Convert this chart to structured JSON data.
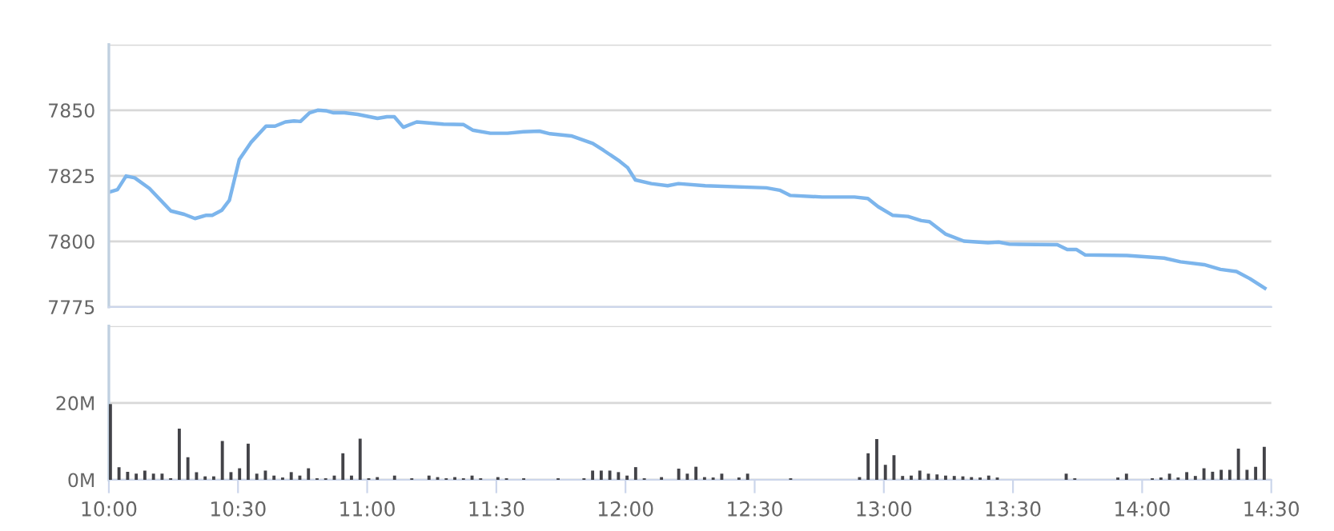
{
  "chart_data": [
    {
      "type": "line",
      "x": [
        10,
        10.0333,
        10.0667,
        10.1,
        10.1567,
        10.24,
        10.2917,
        10.3333,
        10.375,
        10.4,
        10.4367,
        10.4667,
        10.505,
        10.55,
        10.6083,
        10.6433,
        10.6833,
        10.7167,
        10.7417,
        10.7767,
        10.8083,
        10.84,
        10.87,
        10.9117,
        10.9633,
        11.04,
        11.0767,
        11.105,
        11.14,
        11.1917,
        11.295,
        11.3733,
        11.4083,
        11.4767,
        11.5433,
        11.605,
        11.6667,
        11.7083,
        11.79,
        11.8733,
        11.915,
        11.9767,
        12.0083,
        12.0383,
        12.1,
        12.1633,
        12.205,
        12.3083,
        12.545,
        12.5967,
        12.6383,
        12.7617,
        12.8867,
        12.9383,
        12.9783,
        13.035,
        13.0933,
        13.145,
        13.1767,
        13.2383,
        13.31,
        13.4033,
        13.445,
        13.4867,
        13.6717,
        13.71,
        13.745,
        13.78,
        13.9417,
        14.085,
        14.1483,
        14.24,
        14.3033,
        14.365,
        14.4167,
        14.475
      ],
      "series": [
        {
          "color": "#7cb5ec",
          "values": [
            7818.7,
            7819.7,
            7824.9,
            7824.2,
            7820.2,
            7811.6,
            7810.3,
            7808.7,
            7809.9,
            7809.9,
            7811.8,
            7815.7,
            7831.2,
            7837.7,
            7843.9,
            7843.9,
            7845.5,
            7845.9,
            7845.7,
            7849,
            7850,
            7849.8,
            7849,
            7849,
            7848.4,
            7846.9,
            7847.5,
            7847.5,
            7843.5,
            7845.5,
            7844.7,
            7844.5,
            7842.4,
            7841.2,
            7841.2,
            7841.8,
            7842,
            7841,
            7840.2,
            7837.3,
            7834.7,
            7830.6,
            7828.1,
            7823.4,
            7822,
            7821.2,
            7822,
            7821.2,
            7820.4,
            7819.5,
            7817.5,
            7816.9,
            7816.9,
            7816.3,
            7813.2,
            7809.9,
            7809.5,
            7807.9,
            7807.5,
            7802.8,
            7800.1,
            7799.5,
            7799.7,
            7798.9,
            7798.7,
            7796.9,
            7796.9,
            7794.8,
            7794.6,
            7793.6,
            7792.2,
            7791.1,
            7789.3,
            7788.5,
            7785.8,
            7782.1
          ]
        }
      ],
      "xlim": [
        10,
        14.5
      ],
      "ylim": [
        7775,
        7875
      ],
      "yticks": [
        7775,
        7800,
        7825,
        7850,
        {
          "value": 7875,
          "label": null
        }
      ],
      "grid": "y",
      "tick_labels": "y",
      "marker": "none",
      "line_style": "solid"
    },
    {
      "type": "bar",
      "x": [
        10,
        10.0333,
        10.0667,
        10.1,
        10.1333,
        10.1667,
        10.2,
        10.2333,
        10.2667,
        10.3,
        10.3333,
        10.3667,
        10.4,
        10.4333,
        10.4667,
        10.5,
        10.5333,
        10.5667,
        10.6,
        10.6333,
        10.6667,
        10.7,
        10.7333,
        10.7667,
        10.8,
        10.8333,
        10.8667,
        10.9,
        10.9333,
        10.9667,
        11,
        11.0333,
        11.1,
        11.1667,
        11.2333,
        11.2667,
        11.3,
        11.3333,
        11.3667,
        11.4,
        11.4333,
        11.5,
        11.5333,
        11.6,
        11.7333,
        11.8333,
        11.8667,
        11.9,
        11.9333,
        11.9667,
        12,
        12.0333,
        12.0667,
        12.1333,
        12.2,
        12.2333,
        12.2667,
        12.3,
        12.3333,
        12.3667,
        12.4333,
        12.4667,
        12.6333,
        12.9,
        12.9333,
        12.9667,
        13,
        13.0333,
        13.0667,
        13.1,
        13.1333,
        13.1667,
        13.2,
        13.2333,
        13.2667,
        13.3,
        13.3333,
        13.3667,
        13.4,
        13.4333,
        13.7,
        13.7333,
        13.9,
        13.9333,
        14.0333,
        14.0667,
        14.1,
        14.1333,
        14.1667,
        14.2,
        14.2333,
        14.2667,
        14.3,
        14.3333,
        14.3667,
        14.4,
        14.4333,
        14.4667
      ],
      "series": [
        {
          "color": "#434348",
          "values": [
            19.7,
            3.3,
            2.1,
            1.6,
            2.4,
            1.6,
            1.6,
            0.4,
            13.3,
            5.9,
            2.0,
            0.9,
            0.9,
            10.1,
            2.0,
            3.0,
            9.4,
            1.6,
            2.4,
            1.1,
            0.6,
            2.0,
            1.1,
            3.0,
            0.4,
            0.4,
            1.1,
            6.9,
            1.1,
            10.7,
            0.4,
            0.7,
            1.1,
            0.4,
            1.1,
            0.7,
            0.4,
            0.7,
            0.4,
            1.1,
            0.4,
            0.7,
            0.4,
            0.4,
            0.4,
            0.4,
            2.4,
            2.4,
            2.4,
            2.0,
            1.1,
            3.3,
            0.4,
            0.7,
            2.9,
            1.6,
            3.4,
            0.7,
            0.6,
            1.6,
            0.6,
            1.6,
            0.4,
            0.7,
            6.9,
            10.6,
            3.9,
            6.4,
            1.0,
            1.1,
            2.4,
            1.6,
            1.4,
            1.1,
            1.0,
            0.9,
            0.7,
            0.6,
            1.1,
            0.6,
            1.6,
            0.4,
            0.6,
            1.6,
            0.4,
            0.6,
            1.6,
            0.6,
            2.0,
            1.0,
            3.0,
            2.1,
            2.6,
            2.6,
            8.1,
            2.6,
            3.4,
            8.6
          ]
        }
      ],
      "xlim": [
        10,
        14.5
      ],
      "ylim": [
        0,
        40
      ],
      "xticks": [
        {
          "value": 10,
          "label": "10:00"
        },
        {
          "value": 10.5,
          "label": "10:30"
        },
        {
          "value": 11,
          "label": "11:00"
        },
        {
          "value": 11.5,
          "label": "11:30"
        },
        {
          "value": 12,
          "label": "12:00"
        },
        {
          "value": 12.5,
          "label": "12:30"
        },
        {
          "value": 13,
          "label": "13:00"
        },
        {
          "value": 13.5,
          "label": "13:30"
        },
        {
          "value": 14,
          "label": "14:00"
        },
        {
          "value": 14.5,
          "label": "14:30"
        }
      ],
      "yticks": [
        {
          "value": 0,
          "label": "0M"
        },
        {
          "value": 20,
          "label": "20M"
        },
        {
          "value": 40,
          "label": null
        }
      ],
      "grid": "y"
    }
  ]
}
